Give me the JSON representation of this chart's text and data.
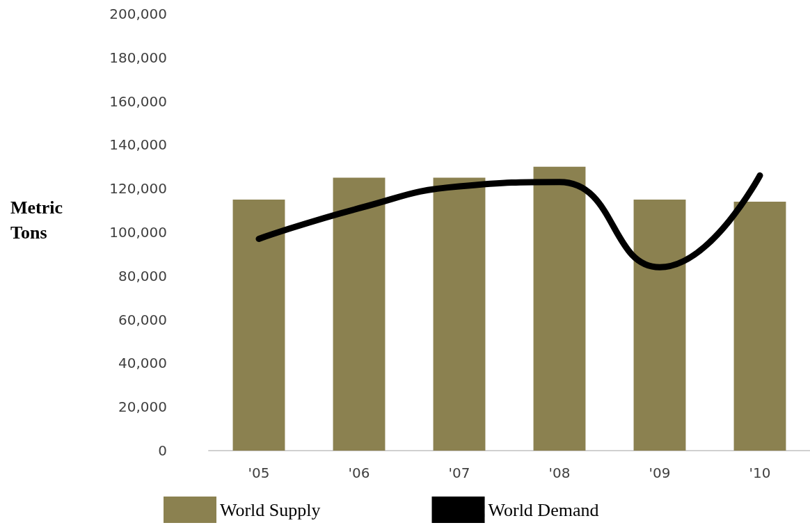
{
  "chart_data": {
    "type": "bar",
    "ylabel": "Metric Tons",
    "categories": [
      "'05",
      "'06",
      "'07",
      "'08",
      "'09",
      "'10"
    ],
    "series": [
      {
        "name": "World Supply",
        "color": "#8b8150",
        "values": [
          115000,
          125000,
          125000,
          130000,
          115000,
          114000
        ]
      },
      {
        "name": "World Demand",
        "type": "line",
        "color": "#000000",
        "values": [
          97000,
          111000,
          121000,
          123000,
          84000,
          126000
        ]
      }
    ],
    "ylim": [
      0,
      200000
    ],
    "yticks": [
      {
        "value": 0,
        "label": "0"
      },
      {
        "value": 20000,
        "label": "20,000"
      },
      {
        "value": 40000,
        "label": "40,000"
      },
      {
        "value": 60000,
        "label": "60,000"
      },
      {
        "value": 80000,
        "label": "80,000"
      },
      {
        "value": 100000,
        "label": "100,000"
      },
      {
        "value": 120000,
        "label": "120,000"
      },
      {
        "value": 140000,
        "label": "140,000"
      },
      {
        "value": 160000,
        "label": "160,000"
      },
      {
        "value": 180000,
        "label": "180,000"
      },
      {
        "value": 200000,
        "label": "200,000"
      }
    ],
    "grid": false,
    "legend": "bottom left"
  }
}
